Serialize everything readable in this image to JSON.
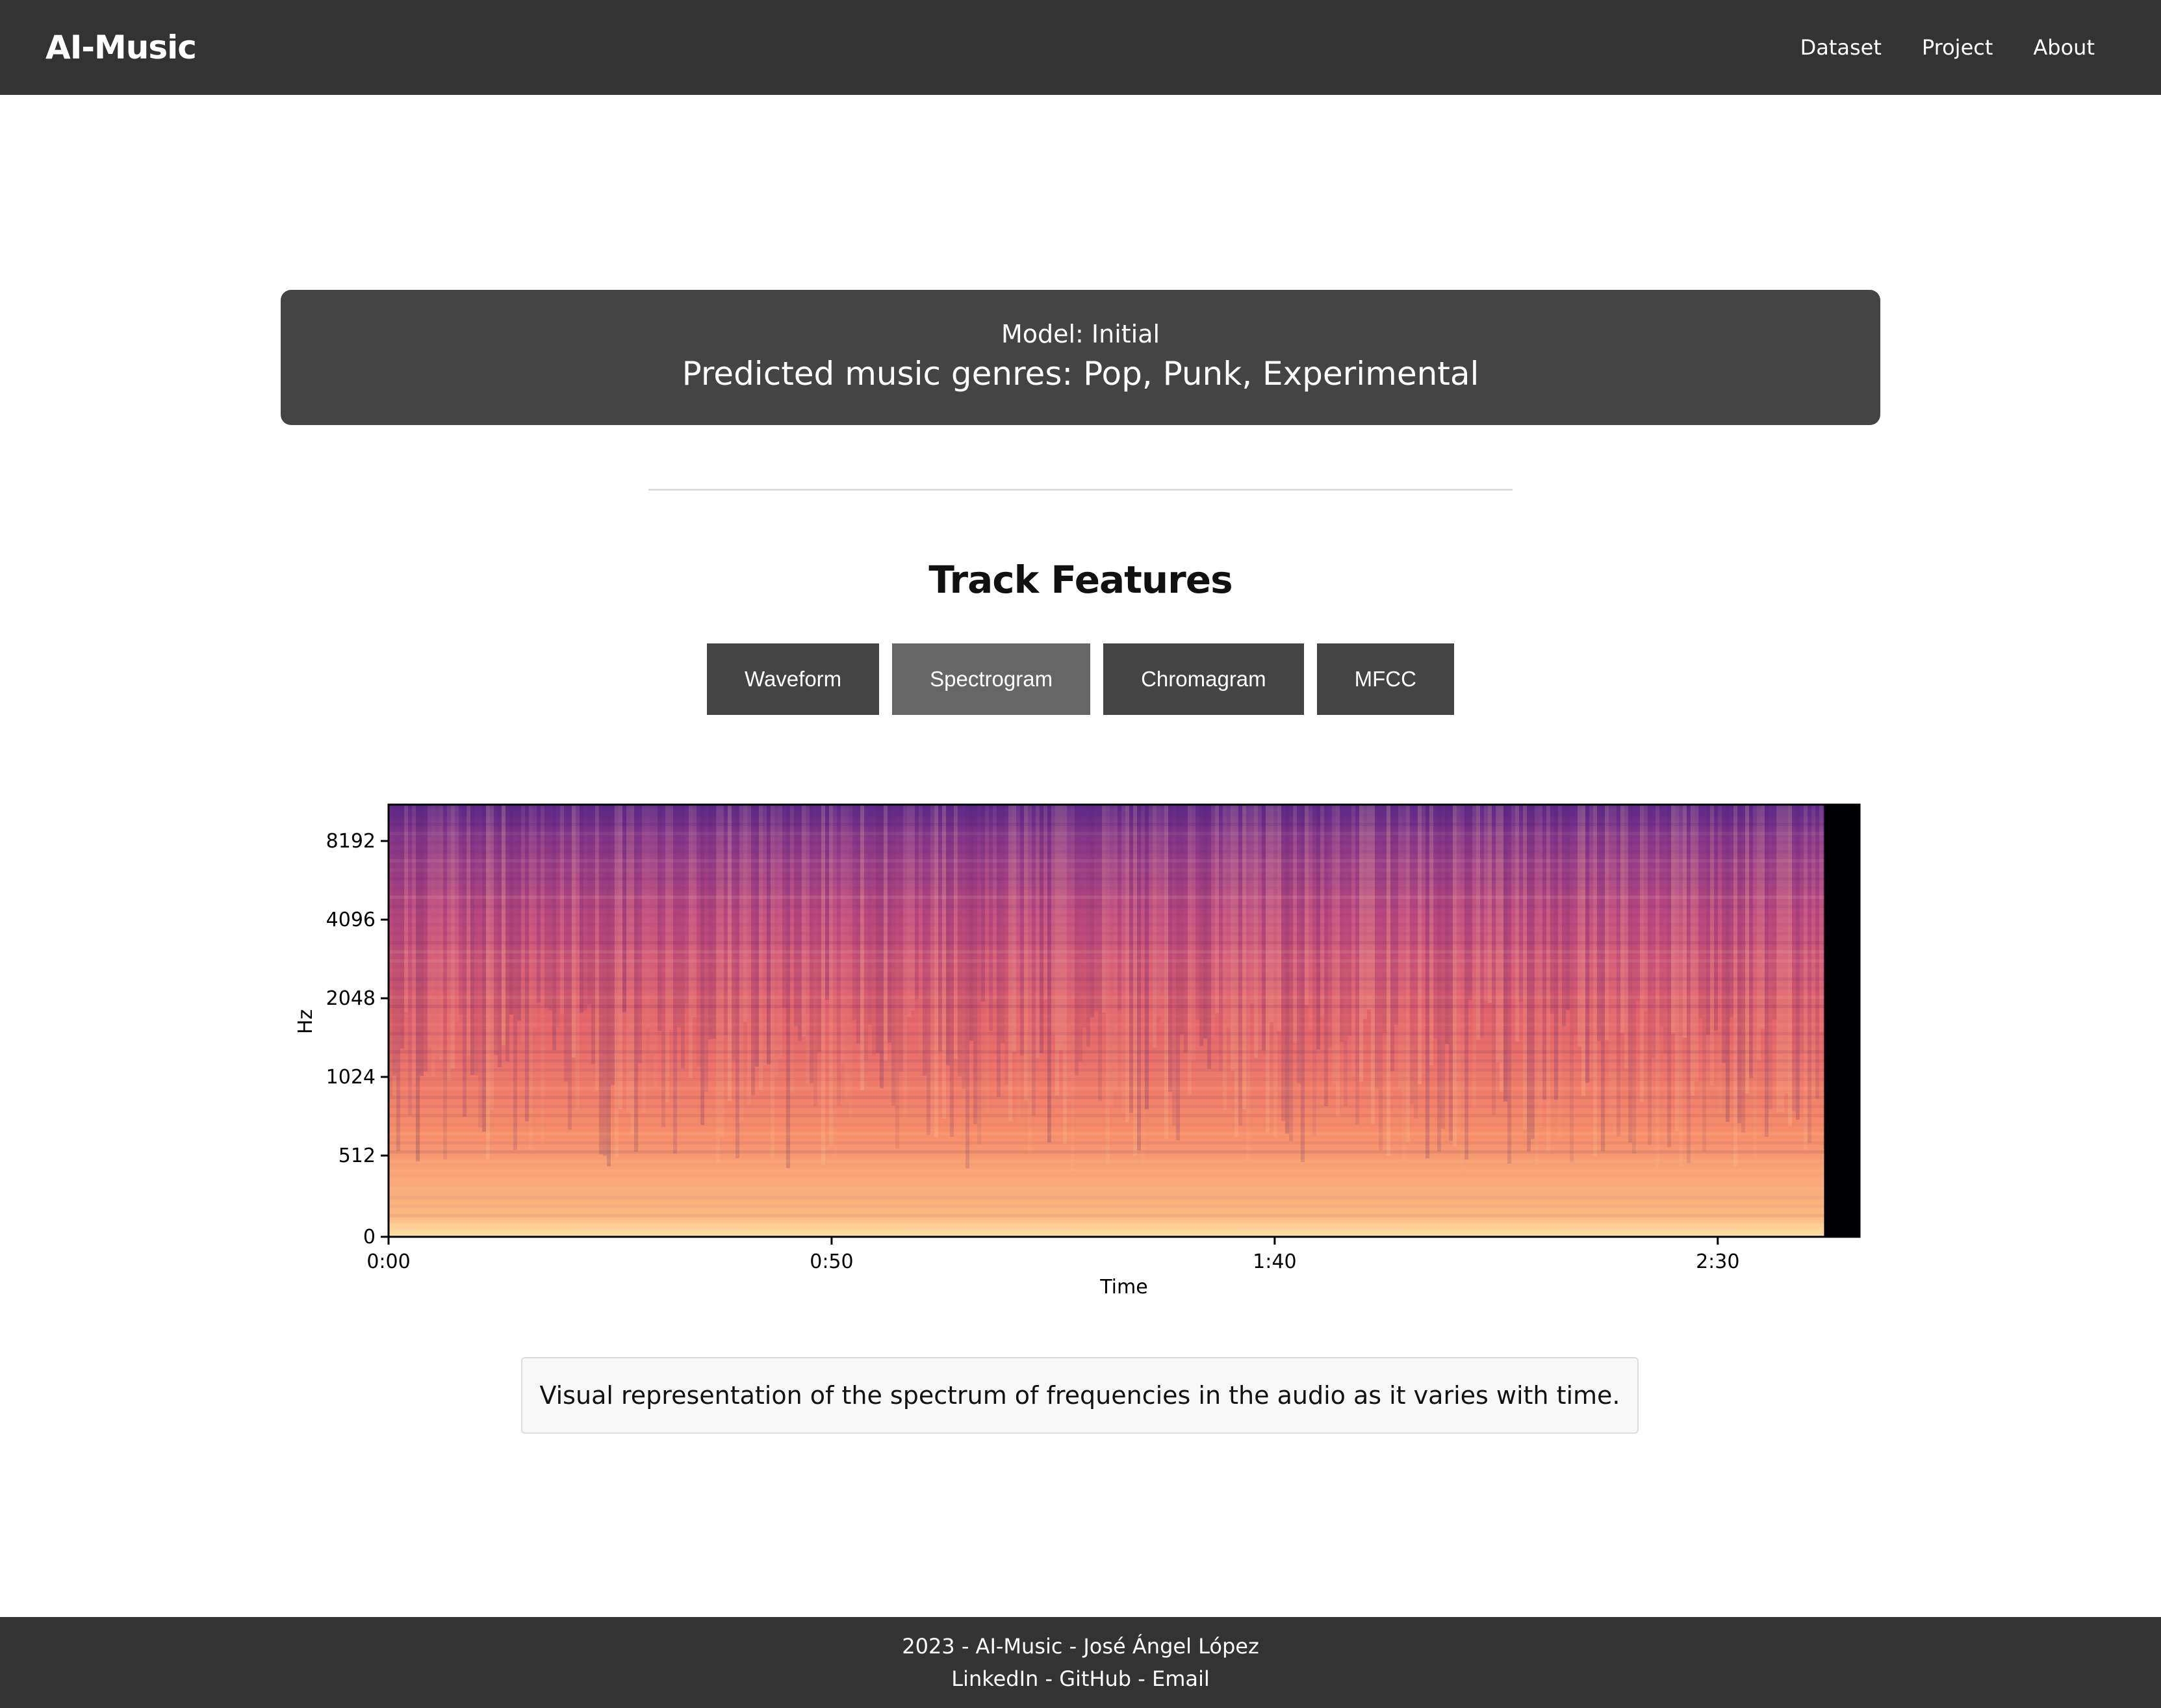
{
  "navbar": {
    "brand": "AI-Music",
    "links": [
      {
        "label": "Dataset"
      },
      {
        "label": "Project"
      },
      {
        "label": "About"
      }
    ]
  },
  "prediction": {
    "model_label": "Model: Initial",
    "genres_label": "Predicted music genres: Pop, Punk, Experimental"
  },
  "features": {
    "title": "Track Features",
    "buttons": [
      {
        "label": "Waveform",
        "active": false
      },
      {
        "label": "Spectrogram",
        "active": true
      },
      {
        "label": "Chromagram",
        "active": false
      },
      {
        "label": "MFCC",
        "active": false
      }
    ],
    "caption": "Visual representation of the spectrum of frequencies in the audio as it varies with time."
  },
  "chart_data": {
    "type": "heatmap",
    "title": "",
    "xlabel": "Time",
    "ylabel": "Hz",
    "x_ticks": [
      "0:00",
      "0:50",
      "1:40",
      "2:30"
    ],
    "x_tick_seconds": [
      0,
      50,
      100,
      150
    ],
    "xlim_seconds": [
      0,
      166
    ],
    "y_ticks": [
      "0",
      "512",
      "1024",
      "2048",
      "4096",
      "8192"
    ],
    "y_tick_values": [
      0,
      512,
      1024,
      2048,
      4096,
      8192
    ],
    "yscale": "log",
    "signal_end_seconds": 162,
    "colormap": "magma",
    "grid": false
  },
  "footer": {
    "line1": "2023 - AI-Music - José Ángel López",
    "links": [
      {
        "label": "LinkedIn"
      },
      {
        "label": "GitHub"
      },
      {
        "label": "Email"
      }
    ],
    "separator": " - "
  }
}
